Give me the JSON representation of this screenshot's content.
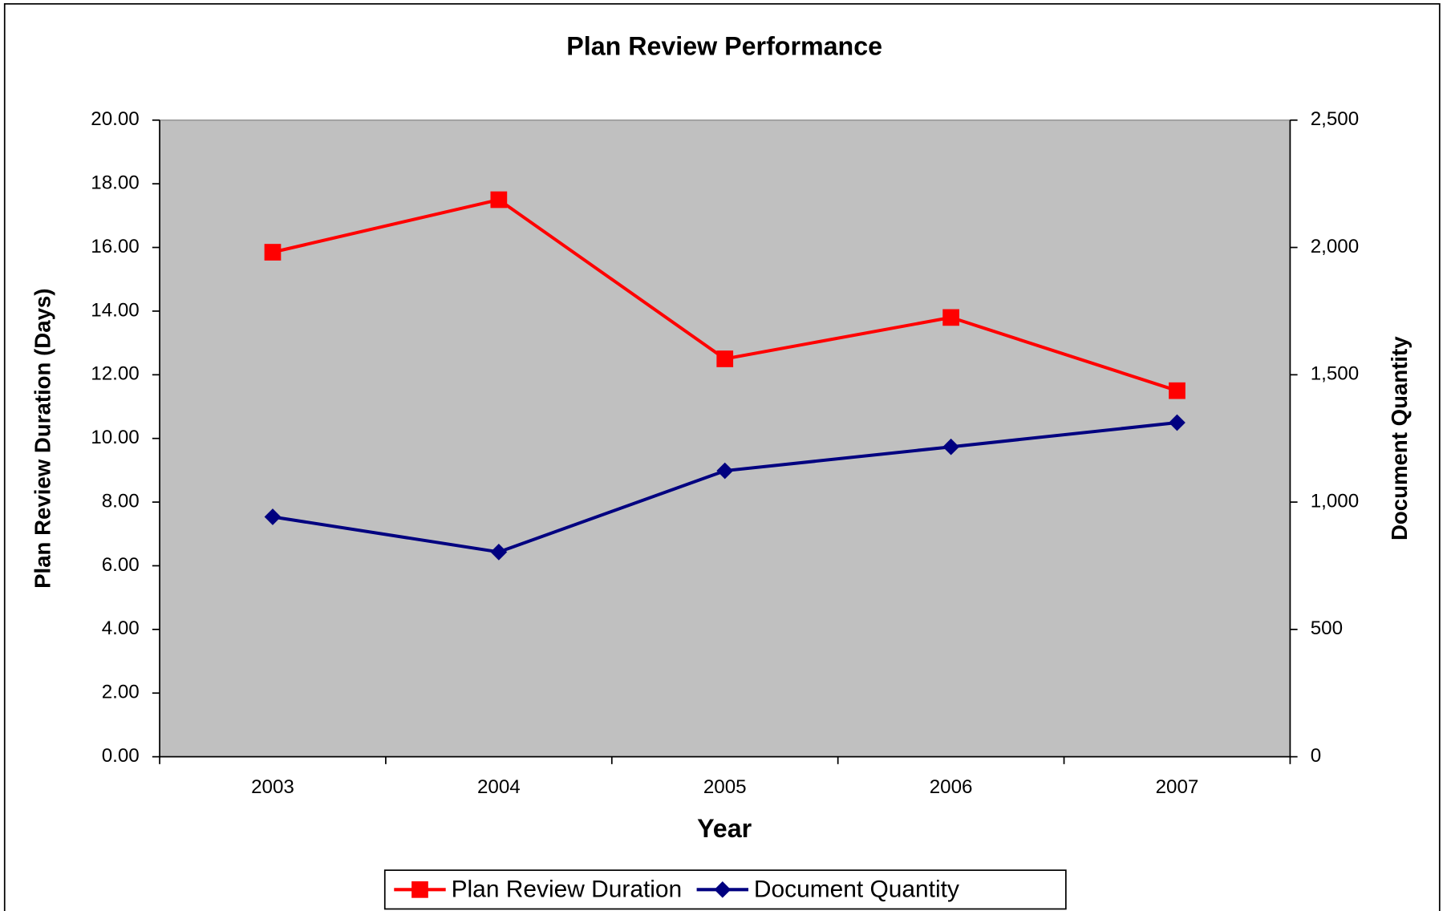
{
  "chart_data": {
    "type": "line",
    "title": "Plan Review Performance",
    "xlabel": "Year",
    "ylabel": "Plan Review Duration (Days)",
    "y2label": "Document Quantity",
    "categories": [
      "2003",
      "2004",
      "2005",
      "2006",
      "2007"
    ],
    "series": [
      {
        "name": "Plan Review Duration",
        "color": "#ff0000",
        "marker": "square",
        "values": [
          15.85,
          17.5,
          12.5,
          13.8,
          11.5
        ]
      },
      {
        "name": "Document Quantity",
        "color": "#000080",
        "marker": "diamond",
        "axis": "y2",
        "values": [
          942,
          804,
          1123,
          1217,
          1312
        ]
      }
    ],
    "ylim": [
      0,
      20
    ],
    "yticks": [
      {
        "value": 0,
        "label": "0.00"
      },
      {
        "value": 2,
        "label": "2.00"
      },
      {
        "value": 4,
        "label": "4.00"
      },
      {
        "value": 6,
        "label": "6.00"
      },
      {
        "value": 8,
        "label": "8.00"
      },
      {
        "value": 10,
        "label": "10.00"
      },
      {
        "value": 12,
        "label": "12.00"
      },
      {
        "value": 14,
        "label": "14.00"
      },
      {
        "value": 16,
        "label": "16.00"
      },
      {
        "value": 18,
        "label": "18.00"
      },
      {
        "value": 20,
        "label": "20.00"
      }
    ],
    "y2lim": [
      0,
      2500
    ],
    "y2ticks": [
      0,
      500,
      {
        "value": 1000,
        "label": "1,000"
      },
      {
        "value": 1500,
        "label": "1,500"
      },
      {
        "value": 2000,
        "label": "2,000"
      },
      {
        "value": 2500,
        "label": "2,500"
      }
    ],
    "plot_background": "#c0c0c0",
    "legend": "bottom"
  }
}
